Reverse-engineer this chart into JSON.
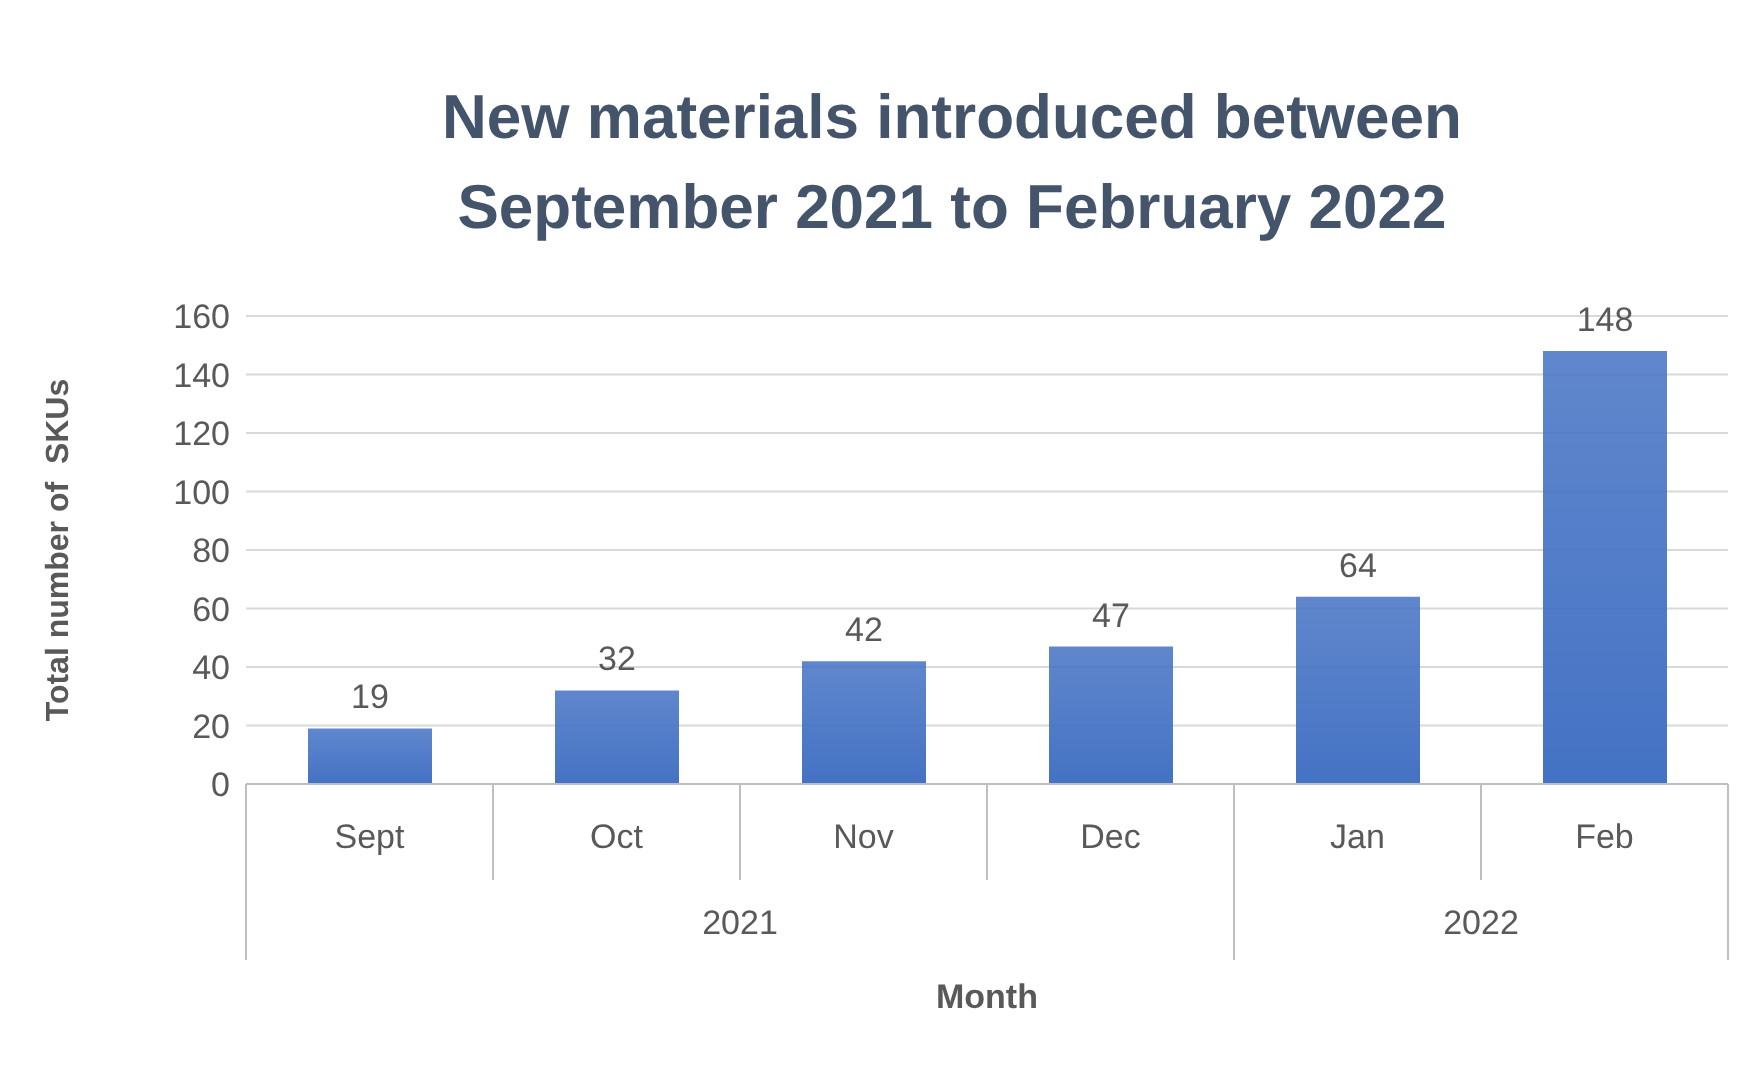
{
  "chart_data": {
    "type": "bar",
    "title": "New materials introduced between September 2021 to February 2022",
    "xlabel": "Month",
    "ylabel": "Total number of  SKUs",
    "categories": [
      "Sept",
      "Oct",
      "Nov",
      "Dec",
      "Jan",
      "Feb"
    ],
    "values": [
      19,
      32,
      42,
      47,
      64,
      148
    ],
    "color": "#4472c4",
    "ylim": [
      0,
      160
    ],
    "yticks": [
      0,
      20,
      40,
      60,
      80,
      100,
      120,
      140,
      160
    ],
    "grid": "y",
    "data_labels": true,
    "annotations": [
      "2021",
      "2022"
    ]
  }
}
